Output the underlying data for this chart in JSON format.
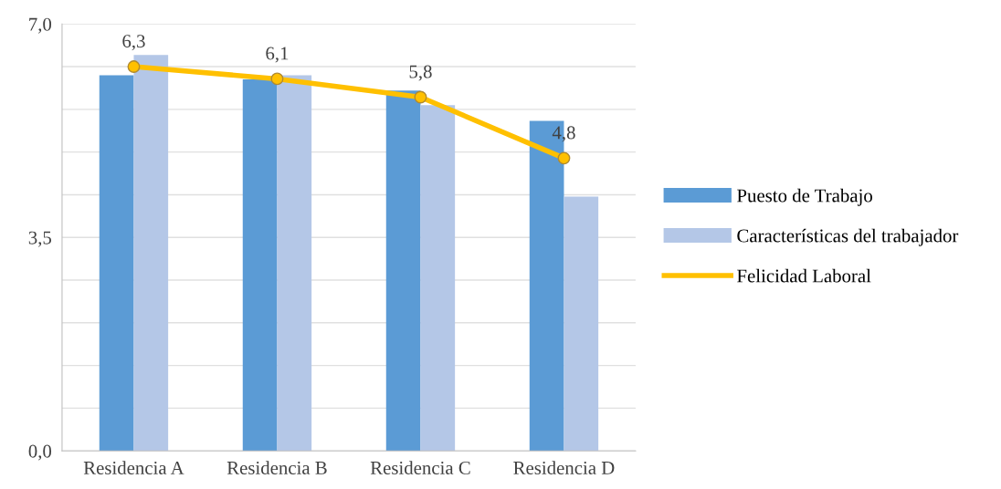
{
  "chart_data": {
    "type": "bar",
    "categories": [
      "Residencia A",
      "Residencia B",
      "Residencia C",
      "Residencia D"
    ],
    "series": [
      {
        "name": "Puesto de Trabajo",
        "color": "#5b9bd5",
        "values": [
          6.16,
          6.09,
          5.91,
          5.41
        ]
      },
      {
        "name": "Características del trabajador",
        "color": "#b4c7e7",
        "values": [
          6.49,
          6.16,
          5.67,
          4.17
        ]
      },
      {
        "name": "Felicidad Laboral",
        "type": "line",
        "color": "#ffc000",
        "values": [
          6.3,
          6.1,
          5.8,
          4.8
        ],
        "marker": "circle",
        "value_labels": [
          "6,3",
          "6,1",
          "5,8",
          "4,8"
        ]
      }
    ],
    "ylim": [
      0,
      7
    ],
    "yticks": [
      {
        "value": 0,
        "label": "0,0"
      },
      {
        "value": 0.7,
        "label": null
      },
      {
        "value": 1.4,
        "label": null
      },
      {
        "value": 2.1,
        "label": null
      },
      {
        "value": 2.8,
        "label": null
      },
      {
        "value": 3.5,
        "label": "3,5"
      },
      {
        "value": 4.2,
        "label": null
      },
      {
        "value": 4.9,
        "label": null
      },
      {
        "value": 5.6,
        "label": null
      },
      {
        "value": 6.3,
        "label": null
      },
      {
        "value": 7,
        "label": "7,0"
      }
    ],
    "grid": "y",
    "legend": "right"
  }
}
